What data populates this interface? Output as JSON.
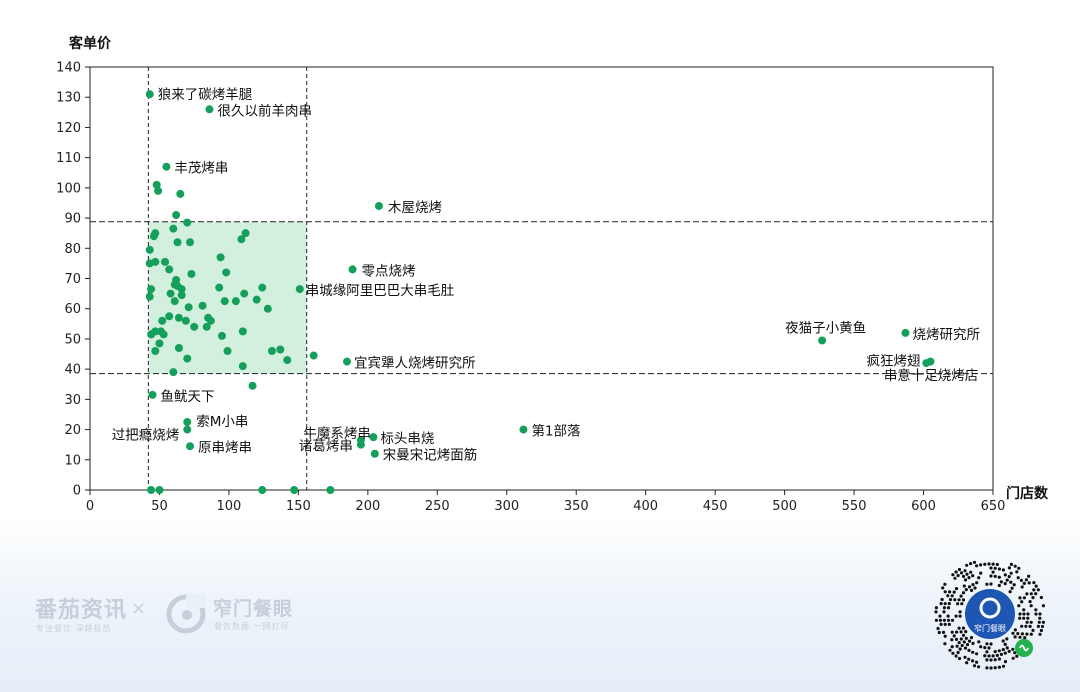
{
  "chart_data": {
    "type": "scatter",
    "xlabel": "门店数",
    "ylabel": "客单价",
    "xlim": [
      0,
      650
    ],
    "ylim": [
      0,
      140
    ],
    "xticks": [
      0,
      50,
      100,
      150,
      200,
      250,
      300,
      350,
      400,
      450,
      500,
      550,
      600,
      650
    ],
    "yticks": [
      0,
      10,
      20,
      30,
      40,
      50,
      60,
      70,
      80,
      90,
      100,
      110,
      120,
      130,
      140
    ],
    "reference_lines": {
      "x": [
        42,
        156
      ],
      "y": [
        38.5,
        88.8
      ]
    },
    "highlight_region": {
      "x": [
        42,
        156
      ],
      "y": [
        38.5,
        88.8
      ],
      "color": "#d3f0de"
    },
    "point_color": "#14a05a",
    "labeled_points": [
      {
        "x": 43,
        "y": 131,
        "label": "狼来了碳烤羊腿"
      },
      {
        "x": 86,
        "y": 126,
        "label": "很久以前羊肉串"
      },
      {
        "x": 55,
        "y": 107,
        "label": "丰茂烤串"
      },
      {
        "x": 208,
        "y": 94,
        "label": "木屋烧烤"
      },
      {
        "x": 189,
        "y": 73,
        "label": "零点烧烤"
      },
      {
        "x": 151,
        "y": 66.5,
        "label": "串城缘阿里巴巴大串毛肚"
      },
      {
        "x": 527,
        "y": 49.5,
        "label": "夜猫子小黄鱼"
      },
      {
        "x": 587,
        "y": 52,
        "label": "烧烤研究所"
      },
      {
        "x": 185,
        "y": 42.5,
        "label": "宜宾犟人烧烤研究所"
      },
      {
        "x": 605,
        "y": 42.5,
        "label": "疯狂烤翅"
      },
      {
        "x": 602,
        "y": 42,
        "label": "串意十足烧烤店"
      },
      {
        "x": 45,
        "y": 31.5,
        "label": "鱼鱿天下"
      },
      {
        "x": 70,
        "y": 22.5,
        "label": "索M小串"
      },
      {
        "x": 70,
        "y": 20,
        "label": "过把瘾烧烤"
      },
      {
        "x": 72,
        "y": 14.5,
        "label": "原串烤串"
      },
      {
        "x": 195,
        "y": 16.5,
        "label": "牛魔系烤串"
      },
      {
        "x": 195,
        "y": 15,
        "label": "诸葛烤串"
      },
      {
        "x": 204,
        "y": 17.5,
        "label": "标头串烧"
      },
      {
        "x": 205,
        "y": 12,
        "label": "宋曼宋记烤面筋"
      },
      {
        "x": 312,
        "y": 20,
        "label": "第1部落"
      }
    ],
    "points": [
      [
        43,
        131
      ],
      [
        86,
        126
      ],
      [
        55,
        107
      ],
      [
        208,
        94
      ],
      [
        189,
        73
      ],
      [
        151,
        66.5
      ],
      [
        527,
        49.5
      ],
      [
        587,
        52
      ],
      [
        185,
        42.5
      ],
      [
        605,
        42.5
      ],
      [
        602,
        42
      ],
      [
        45,
        31.5
      ],
      [
        70,
        22.5
      ],
      [
        70,
        20
      ],
      [
        72,
        14.5
      ],
      [
        195,
        16.5
      ],
      [
        195,
        15
      ],
      [
        204,
        17.5
      ],
      [
        205,
        12
      ],
      [
        312,
        20
      ],
      [
        48,
        101
      ],
      [
        49,
        99
      ],
      [
        65,
        98
      ],
      [
        62,
        91
      ],
      [
        70,
        88.5
      ],
      [
        60,
        86.5
      ],
      [
        47,
        85
      ],
      [
        46,
        84
      ],
      [
        112,
        85
      ],
      [
        109,
        83
      ],
      [
        63,
        82
      ],
      [
        72,
        82
      ],
      [
        43,
        79.5
      ],
      [
        94,
        77
      ],
      [
        54,
        75.5
      ],
      [
        43,
        75
      ],
      [
        47,
        75.5
      ],
      [
        57,
        73
      ],
      [
        98,
        72
      ],
      [
        73,
        71.5
      ],
      [
        62,
        69.5
      ],
      [
        61,
        68
      ],
      [
        44,
        66.5
      ],
      [
        63,
        67.5
      ],
      [
        93,
        67
      ],
      [
        66,
        66.5
      ],
      [
        124,
        67
      ],
      [
        58,
        65
      ],
      [
        66,
        64.5
      ],
      [
        111,
        65
      ],
      [
        43,
        64
      ],
      [
        120,
        63
      ],
      [
        61,
        62.5
      ],
      [
        97,
        62.5
      ],
      [
        105,
        62.5
      ],
      [
        71,
        60.5
      ],
      [
        81,
        61
      ],
      [
        128,
        60
      ],
      [
        57,
        57.5
      ],
      [
        64,
        57
      ],
      [
        69,
        56
      ],
      [
        85,
        57
      ],
      [
        87,
        56
      ],
      [
        52,
        56
      ],
      [
        75,
        54
      ],
      [
        84,
        54
      ],
      [
        47,
        52.5
      ],
      [
        51,
        52.5
      ],
      [
        110,
        52.5
      ],
      [
        95,
        51
      ],
      [
        44,
        51.5
      ],
      [
        53,
        51.5
      ],
      [
        50,
        48.5
      ],
      [
        64,
        47
      ],
      [
        47,
        46
      ],
      [
        99,
        46
      ],
      [
        131,
        46
      ],
      [
        137,
        46.5
      ],
      [
        142,
        43
      ],
      [
        161,
        44.5
      ],
      [
        70,
        43.5
      ],
      [
        110,
        41
      ],
      [
        60,
        39
      ],
      [
        117,
        34.5
      ],
      [
        44,
        0
      ],
      [
        50,
        0
      ],
      [
        124,
        0
      ],
      [
        147,
        0
      ],
      [
        173,
        0
      ]
    ]
  },
  "branding": {
    "brand1_title": "番茄资讯",
    "brand1_sub": "专注餐饮  深耕投后",
    "separator": "×",
    "brand2_title": "窄门餐眼",
    "brand2_sub": "餐饮数据  一网打尽",
    "qr_center_text": "窄门餐眼"
  }
}
